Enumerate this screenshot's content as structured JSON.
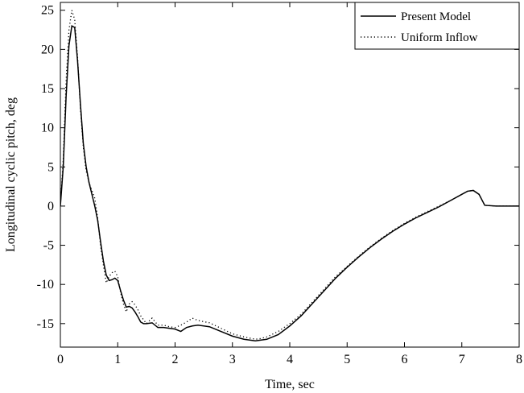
{
  "chart_data": {
    "type": "line",
    "xlabel": "Time, sec",
    "ylabel": "Longitudinal cyclic pitch, deg",
    "xlim": [
      0,
      8
    ],
    "ylim": [
      -18,
      26
    ],
    "x_ticks": [
      "0",
      "1",
      "2",
      "3",
      "4",
      "5",
      "6",
      "7",
      "8"
    ],
    "y_ticks": [
      "25",
      "20",
      "15",
      "10",
      "5",
      "0",
      "-5",
      "-10",
      "-15"
    ],
    "grid": false,
    "legend_position": "top-right",
    "series": [
      {
        "name": "Present Model",
        "line_style": "solid",
        "color": "#000000",
        "points": [
          [
            0.0,
            0.0
          ],
          [
            0.05,
            5.0
          ],
          [
            0.1,
            14.0
          ],
          [
            0.15,
            20.5
          ],
          [
            0.2,
            23.0
          ],
          [
            0.25,
            22.8
          ],
          [
            0.3,
            18.5
          ],
          [
            0.35,
            13.0
          ],
          [
            0.4,
            8.0
          ],
          [
            0.45,
            5.0
          ],
          [
            0.5,
            3.0
          ],
          [
            0.55,
            1.5
          ],
          [
            0.6,
            0.0
          ],
          [
            0.65,
            -1.8
          ],
          [
            0.7,
            -4.5
          ],
          [
            0.75,
            -7.0
          ],
          [
            0.8,
            -8.8
          ],
          [
            0.85,
            -9.5
          ],
          [
            0.9,
            -9.4
          ],
          [
            0.95,
            -9.2
          ],
          [
            1.0,
            -9.5
          ],
          [
            1.05,
            -10.8
          ],
          [
            1.1,
            -12.0
          ],
          [
            1.15,
            -12.9
          ],
          [
            1.2,
            -12.8
          ],
          [
            1.25,
            -13.0
          ],
          [
            1.3,
            -13.5
          ],
          [
            1.35,
            -14.1
          ],
          [
            1.4,
            -14.8
          ],
          [
            1.45,
            -15.0
          ],
          [
            1.5,
            -15.0
          ],
          [
            1.6,
            -14.9
          ],
          [
            1.7,
            -15.5
          ],
          [
            1.8,
            -15.5
          ],
          [
            1.9,
            -15.6
          ],
          [
            2.0,
            -15.7
          ],
          [
            2.1,
            -16.0
          ],
          [
            2.2,
            -15.5
          ],
          [
            2.3,
            -15.3
          ],
          [
            2.4,
            -15.2
          ],
          [
            2.6,
            -15.4
          ],
          [
            2.8,
            -16.0
          ],
          [
            3.0,
            -16.6
          ],
          [
            3.2,
            -17.0
          ],
          [
            3.4,
            -17.2
          ],
          [
            3.5,
            -17.1
          ],
          [
            3.6,
            -17.0
          ],
          [
            3.8,
            -16.4
          ],
          [
            4.0,
            -15.3
          ],
          [
            4.2,
            -14.0
          ],
          [
            4.4,
            -12.4
          ],
          [
            4.6,
            -10.8
          ],
          [
            4.8,
            -9.2
          ],
          [
            5.0,
            -7.8
          ],
          [
            5.2,
            -6.5
          ],
          [
            5.4,
            -5.3
          ],
          [
            5.6,
            -4.2
          ],
          [
            5.8,
            -3.2
          ],
          [
            6.0,
            -2.3
          ],
          [
            6.2,
            -1.5
          ],
          [
            6.4,
            -0.8
          ],
          [
            6.6,
            -0.1
          ],
          [
            6.8,
            0.7
          ],
          [
            7.0,
            1.5
          ],
          [
            7.1,
            1.9
          ],
          [
            7.2,
            2.0
          ],
          [
            7.3,
            1.5
          ],
          [
            7.4,
            0.1
          ],
          [
            7.6,
            0.0
          ],
          [
            7.8,
            0.0
          ],
          [
            8.0,
            0.0
          ]
        ]
      },
      {
        "name": "Uniform Inflow",
        "line_style": "dotted",
        "color": "#000000",
        "points": [
          [
            0.0,
            0.0
          ],
          [
            0.05,
            6.0
          ],
          [
            0.1,
            16.0
          ],
          [
            0.15,
            22.5
          ],
          [
            0.2,
            25.0
          ],
          [
            0.25,
            23.8
          ],
          [
            0.3,
            19.0
          ],
          [
            0.35,
            12.5
          ],
          [
            0.4,
            7.5
          ],
          [
            0.45,
            4.5
          ],
          [
            0.5,
            3.0
          ],
          [
            0.55,
            2.0
          ],
          [
            0.6,
            1.0
          ],
          [
            0.65,
            -1.5
          ],
          [
            0.7,
            -5.0
          ],
          [
            0.75,
            -7.5
          ],
          [
            0.8,
            -9.8
          ],
          [
            0.85,
            -9.0
          ],
          [
            0.9,
            -8.5
          ],
          [
            0.95,
            -8.3
          ],
          [
            1.0,
            -9.0
          ],
          [
            1.05,
            -11.0
          ],
          [
            1.1,
            -12.5
          ],
          [
            1.15,
            -13.5
          ],
          [
            1.2,
            -12.5
          ],
          [
            1.25,
            -12.2
          ],
          [
            1.3,
            -12.6
          ],
          [
            1.35,
            -13.2
          ],
          [
            1.4,
            -14.0
          ],
          [
            1.45,
            -14.5
          ],
          [
            1.5,
            -15.0
          ],
          [
            1.6,
            -14.3
          ],
          [
            1.7,
            -15.2
          ],
          [
            1.8,
            -15.2
          ],
          [
            1.9,
            -15.4
          ],
          [
            2.0,
            -15.5
          ],
          [
            2.1,
            -15.2
          ],
          [
            2.2,
            -14.8
          ],
          [
            2.3,
            -14.3
          ],
          [
            2.4,
            -14.6
          ],
          [
            2.6,
            -14.9
          ],
          [
            2.8,
            -15.6
          ],
          [
            3.0,
            -16.3
          ],
          [
            3.2,
            -16.7
          ],
          [
            3.4,
            -17.0
          ],
          [
            3.5,
            -16.9
          ],
          [
            3.6,
            -16.7
          ],
          [
            3.8,
            -16.0
          ],
          [
            4.0,
            -15.0
          ],
          [
            4.2,
            -13.8
          ],
          [
            4.4,
            -12.2
          ],
          [
            4.6,
            -10.6
          ],
          [
            4.8,
            -9.0
          ],
          [
            5.0,
            -7.7
          ],
          [
            5.2,
            -6.4
          ],
          [
            5.4,
            -5.2
          ],
          [
            5.6,
            -4.1
          ],
          [
            5.8,
            -3.1
          ],
          [
            6.0,
            -2.2
          ],
          [
            6.2,
            -1.4
          ],
          [
            6.4,
            -0.7
          ],
          [
            6.6,
            0.0
          ],
          [
            6.8,
            0.7
          ],
          [
            7.0,
            1.5
          ],
          [
            7.1,
            1.9
          ],
          [
            7.2,
            2.0
          ],
          [
            7.3,
            1.5
          ],
          [
            7.4,
            0.1
          ],
          [
            7.6,
            0.0
          ],
          [
            7.8,
            0.0
          ],
          [
            8.0,
            0.0
          ]
        ]
      }
    ]
  }
}
